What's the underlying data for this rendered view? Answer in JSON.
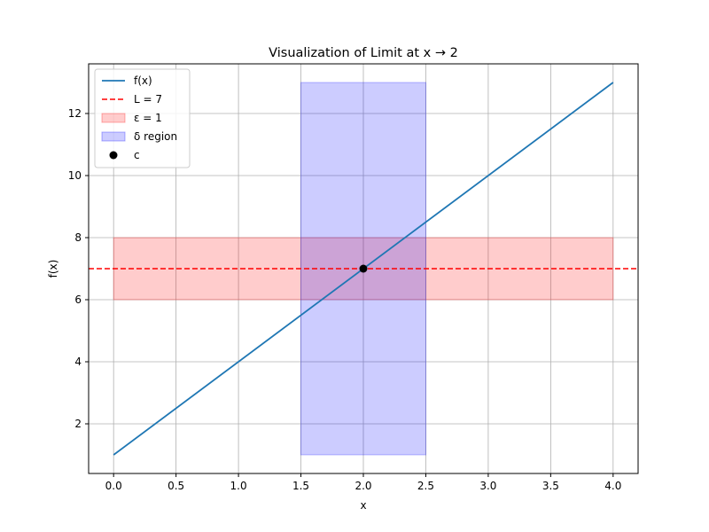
{
  "chart_data": {
    "type": "line",
    "title": "Visualization of Limit at x → 2",
    "xlabel": "x",
    "ylabel": "f(x)",
    "xlim": [
      -0.2,
      4.2
    ],
    "ylim": [
      0.4,
      13.6
    ],
    "x_ticks": [
      0.0,
      0.5,
      1.0,
      1.5,
      2.0,
      2.5,
      3.0,
      3.5,
      4.0
    ],
    "x_tick_labels": [
      "0.0",
      "0.5",
      "1.0",
      "1.5",
      "2.0",
      "2.5",
      "3.0",
      "3.5",
      "4.0"
    ],
    "y_ticks": [
      2,
      4,
      6,
      8,
      10,
      12
    ],
    "y_tick_labels": [
      "2",
      "4",
      "6",
      "8",
      "10",
      "12"
    ],
    "grid": true,
    "legend_position": "top-left",
    "series": [
      {
        "name": "f(x)",
        "kind": "line",
        "color": "#1f77b4",
        "x": [
          0,
          4
        ],
        "y": [
          1,
          13
        ]
      },
      {
        "name": "L = 7",
        "kind": "hline",
        "style": "dashed",
        "color": "#ff0000",
        "y": 7
      },
      {
        "name": "ε = 1",
        "kind": "hband",
        "color": "#ff0000",
        "opacity": 0.2,
        "x": [
          0,
          4
        ],
        "y": [
          6,
          8
        ]
      },
      {
        "name": "δ region",
        "kind": "vband",
        "color": "#0000ff",
        "opacity": 0.2,
        "x": [
          1.5,
          2.5
        ],
        "y": [
          1,
          13
        ]
      },
      {
        "name": "c",
        "kind": "scatter",
        "color": "#000000",
        "x": [
          2
        ],
        "y": [
          7
        ]
      }
    ]
  }
}
